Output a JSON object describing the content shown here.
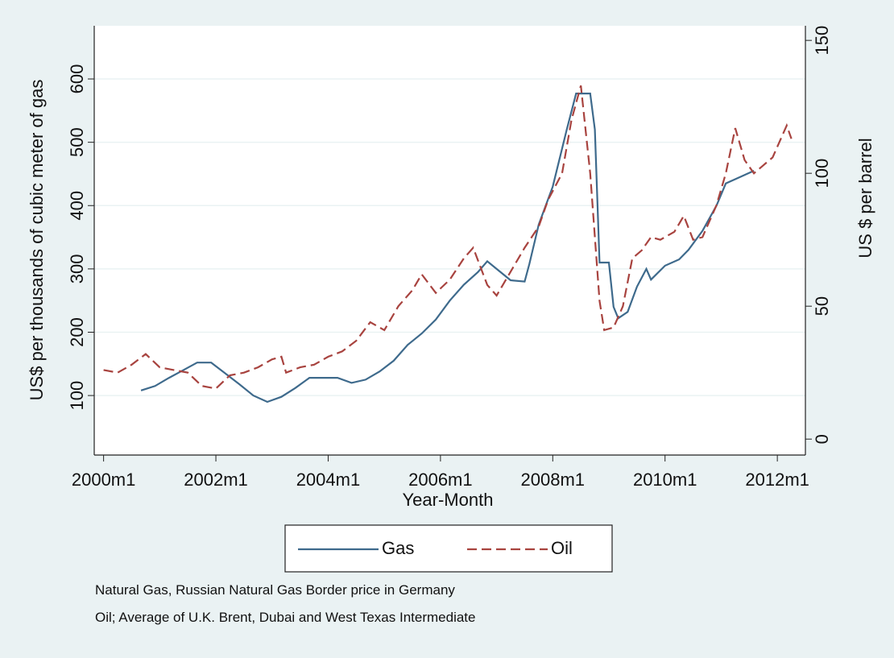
{
  "chart_data": {
    "type": "line",
    "x_label": "Year-Month",
    "y_label": "US$ per thousands of cubic meter of gas",
    "y2_label": "US $ per barrel",
    "xlim": [
      "1999m11",
      "2012m7"
    ],
    "xticks": [
      "2000m1",
      "2002m1",
      "2004m1",
      "2006m1",
      "2008m1",
      "2010m1",
      "2012m1"
    ],
    "ylim": [
      6,
      684
    ],
    "yticks": [
      100,
      200,
      300,
      400,
      500,
      600
    ],
    "y2lim": [
      -6,
      155.5
    ],
    "y2ticks": [
      0,
      50,
      100,
      150
    ],
    "grid": true,
    "legend": "bottom",
    "series": [
      {
        "name": "Gas",
        "color": "#3e6a8c",
        "dash": "solid",
        "x": [
          "2000m9",
          "2000m12",
          "2001m3",
          "2001m6",
          "2001m9",
          "2001m12",
          "2002m3",
          "2002m6",
          "2002m9",
          "2002m12",
          "2003m3",
          "2003m6",
          "2003m9",
          "2003m12",
          "2004m3",
          "2004m6",
          "2004m9",
          "2004m12",
          "2005m3",
          "2005m6",
          "2005m9",
          "2005m12",
          "2006m3",
          "2006m6",
          "2006m9",
          "2006m11",
          "2007m1",
          "2007m4",
          "2007m7",
          "2007m8",
          "2007m10",
          "2008m1",
          "2008m4",
          "2008m6",
          "2008m9",
          "2008m10",
          "2008m11",
          "2009m1",
          "2009m2",
          "2009m3",
          "2009m5",
          "2009m7",
          "2009m9",
          "2009m10",
          "2010m1",
          "2010m4",
          "2010m6",
          "2010m9",
          "2010m12",
          "2011m2",
          "2011m5",
          "2011m8"
        ],
        "values": [
          108,
          115,
          128,
          140,
          152,
          152,
          135,
          118,
          100,
          90,
          98,
          112,
          128,
          128,
          128,
          120,
          125,
          138,
          155,
          180,
          198,
          220,
          250,
          275,
          295,
          312,
          300,
          282,
          280,
          308,
          370,
          430,
          520,
          577,
          577,
          520,
          310,
          310,
          240,
          222,
          232,
          272,
          300,
          283,
          305,
          315,
          330,
          360,
          400,
          435,
          445,
          455
        ]
      },
      {
        "name": "Oil",
        "color": "#a8433f",
        "dash": "dashed",
        "axis": "y2",
        "x": [
          "2000m1",
          "2000m4",
          "2000m7",
          "2000m10",
          "2001m1",
          "2001m4",
          "2001m7",
          "2001m10",
          "2002m1",
          "2002m4",
          "2002m7",
          "2002m10",
          "2003m1",
          "2003m3",
          "2003m4",
          "2003m7",
          "2003m10",
          "2004m1",
          "2004m4",
          "2004m7",
          "2004m10",
          "2005m1",
          "2005m4",
          "2005m7",
          "2005m9",
          "2005m12",
          "2006m3",
          "2006m6",
          "2006m8",
          "2006m11",
          "2007m1",
          "2007m4",
          "2007m7",
          "2007m10",
          "2007m12",
          "2008m3",
          "2008m5",
          "2008m7",
          "2008m9",
          "2008m11",
          "2008m12",
          "2009m2",
          "2009m4",
          "2009m6",
          "2009m8",
          "2009m10",
          "2009m12",
          "2010m3",
          "2010m5",
          "2010m7",
          "2010m9",
          "2010m12",
          "2011m2",
          "2011m4",
          "2011m6",
          "2011m8",
          "2011m10",
          "2011m12",
          "2012m3",
          "2012m4"
        ],
        "values": [
          26,
          25,
          28,
          32,
          27,
          26,
          25,
          20,
          19,
          24,
          25,
          27,
          30,
          31,
          25,
          27,
          28,
          31,
          33,
          37,
          44,
          41,
          50,
          56,
          62,
          55,
          60,
          68,
          72,
          58,
          54,
          63,
          72,
          80,
          90,
          100,
          120,
          133,
          100,
          52,
          41,
          42,
          50,
          68,
          71,
          76,
          75,
          78,
          84,
          75,
          76,
          88,
          100,
          117,
          105,
          100,
          103,
          106,
          118,
          113
        ]
      }
    ],
    "notes": [
      "Natural Gas, Russian Natural Gas Border price in Germany",
      "Oil; Average of U.K. Brent, Dubai and West Texas Intermediate"
    ]
  }
}
